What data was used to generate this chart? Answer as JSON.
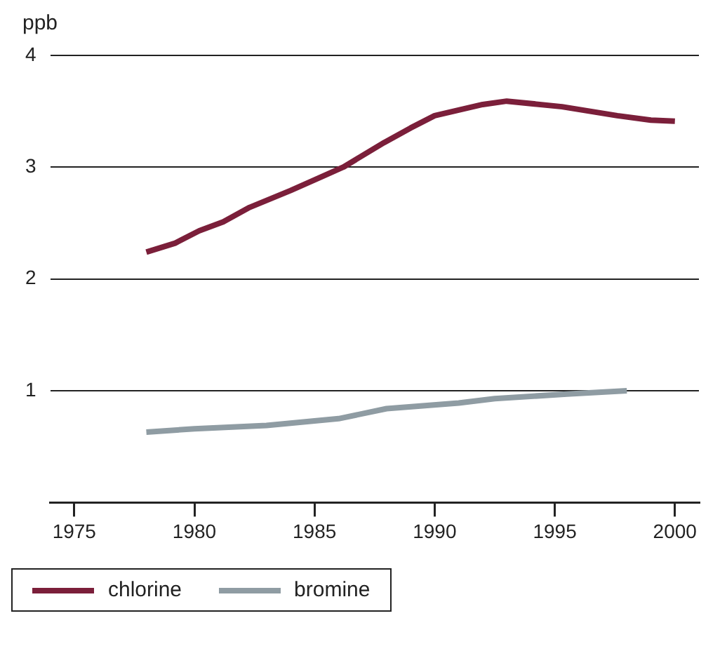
{
  "chart_data": {
    "type": "line",
    "ylabel": "ppb",
    "xlim": [
      1974,
      2001
    ],
    "xticks": [
      1975,
      1980,
      1985,
      1990,
      1995,
      2000
    ],
    "ylim": [
      0,
      4
    ],
    "yticks": [
      1,
      2,
      3,
      4
    ],
    "grid": "y",
    "legend": "bottom left",
    "marker": "none",
    "line_style": "solid",
    "series": [
      {
        "name": "chlorine",
        "color": "#7b1f3a",
        "x": [
          1978,
          1979.2,
          1980.2,
          1981.2,
          1982.3,
          1984,
          1986.2,
          1987.9,
          1989,
          1990,
          1992,
          1993,
          1995.3,
          1997.6,
          1999,
          2000
        ],
        "values": [
          2.24,
          2.32,
          2.43,
          2.51,
          2.64,
          2.79,
          3.0,
          3.22,
          3.35,
          3.46,
          3.56,
          3.59,
          3.54,
          3.46,
          3.42,
          3.41
        ]
      },
      {
        "name": "bromine",
        "color": "#8f9ca3",
        "x": [
          1978,
          1980,
          1983,
          1986,
          1988,
          1991,
          1992.5,
          1995.5,
          1998
        ],
        "values": [
          0.63,
          0.66,
          0.69,
          0.75,
          0.84,
          0.89,
          0.93,
          0.97,
          1.0
        ]
      }
    ]
  }
}
